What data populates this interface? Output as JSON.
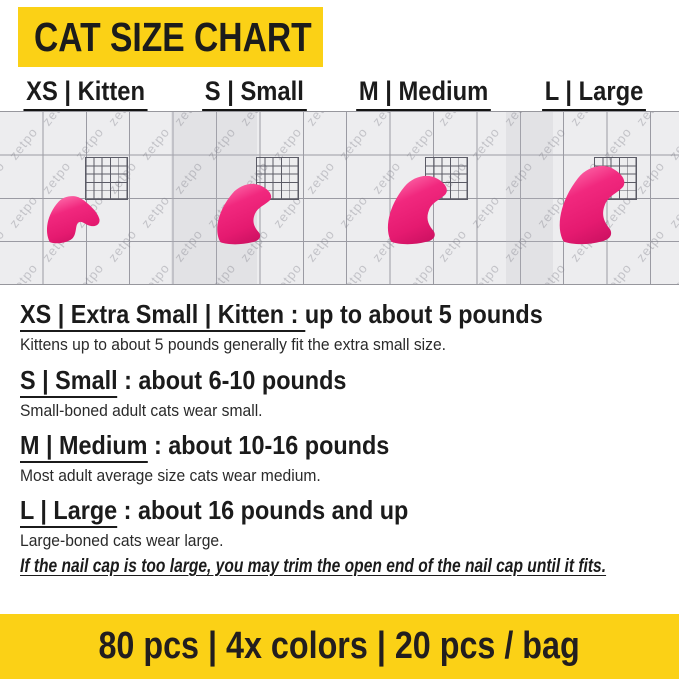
{
  "banner": {
    "title": "CAT SIZE CHART",
    "footer": "80 pcs | 4x colors | 20 pcs / bag"
  },
  "colors": {
    "accent_yellow": "#FBD116",
    "cap_pink": "#EE2478",
    "grid_bg": "#EDEDEF",
    "text_black": "#1B1B1B"
  },
  "size_headers": [
    {
      "label": "XS | Kitten"
    },
    {
      "label": "S | Small"
    },
    {
      "label": "M | Medium"
    },
    {
      "label": "L | Large"
    }
  ],
  "grid": {
    "watermark": "zetpo",
    "cap_sizes": [
      "XS",
      "S",
      "M",
      "L"
    ]
  },
  "sections": [
    {
      "underlined": "XS | Extra Small | Kitten : ",
      "rest": " up to about 5 pounds",
      "description": "Kittens up to about 5 pounds generally fit the extra small size."
    },
    {
      "underlined": "S | Small",
      "rest": " : about 6-10 pounds",
      "description": "Small-boned adult cats wear small."
    },
    {
      "underlined": "M | Medium",
      "rest": " : about 10-16 pounds",
      "description": "Most adult average size cats wear medium."
    },
    {
      "underlined": "L | Large",
      "rest": " : about 16 pounds and up",
      "description": "Large-boned cats wear large."
    }
  ],
  "note": "If the nail cap is too large, you may trim the open end of the nail cap until it fits."
}
